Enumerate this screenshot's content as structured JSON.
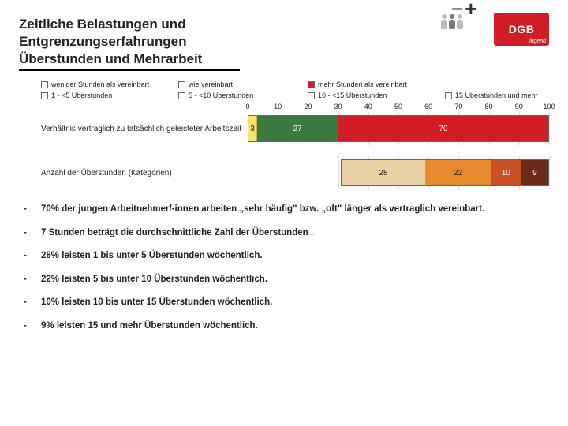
{
  "title": {
    "line1": "Zeitliche Belastungen und",
    "line2": "Entgrenzungserfahrungen",
    "line3": "Überstunden und Mehrarbeit"
  },
  "logo": {
    "text": "DGB",
    "sub": "jugend"
  },
  "legend": [
    {
      "label": "weniger Stunden als vereinbart",
      "color": "#ffffff"
    },
    {
      "label": "wie vereinbart",
      "color": "#ffffff"
    },
    {
      "label": "mehr Stunden als vereinbart",
      "color": "#d11e25"
    },
    {
      "label": "",
      "color": null
    },
    {
      "label": "1 - <5 Überstunden",
      "color": "#ffffff"
    },
    {
      "label": "5 - <10 Überstunden",
      "color": "#ffffff"
    },
    {
      "label": "10 - <15 Überstunden",
      "color": "#ffffff"
    },
    {
      "label": "15 Überstunden und mehr",
      "color": "#ffffff"
    }
  ],
  "chart": {
    "xmin": 0,
    "xmax": 100,
    "tick_step": 10,
    "axis_ticks": [
      0,
      10,
      20,
      30,
      40,
      50,
      60,
      70,
      80,
      90,
      100
    ],
    "background": "#ffffff",
    "grid_color": "#dddddd",
    "border_color": "#666666",
    "label_fontsize": 10,
    "value_fontsize": 10,
    "rows": [
      {
        "label": "Verhältnis vertraglich zu tatsächlich geleisteter Arbeitszeit",
        "segments": [
          {
            "value": 3,
            "display": "3",
            "color": "#f7e36b",
            "text": "dark"
          },
          {
            "value": 27,
            "display": "27",
            "color": "#3a7a3f",
            "text": "light"
          },
          {
            "value": 70,
            "display": "70",
            "color": "#d11e25",
            "text": "light"
          }
        ]
      },
      {
        "label": "Anzahl der Überstunden (Kategorien)",
        "leading_gap": 31,
        "segments": [
          {
            "value": 28,
            "display": "28",
            "color": "#e9cfa2",
            "text": "dark"
          },
          {
            "value": 22,
            "display": "22",
            "color": "#e68a2e",
            "text": "dark"
          },
          {
            "value": 10,
            "display": "10",
            "color": "#c94f24",
            "text": "light"
          },
          {
            "value": 9,
            "display": "9",
            "color": "#6a2a18",
            "text": "light"
          }
        ]
      }
    ]
  },
  "bullets": [
    "70% der jungen Arbeitnehmer/-innen arbeiten „sehr häufig\" bzw. „oft\" länger als vertraglich vereinbart.",
    "7 Stunden beträgt die durchschnittliche Zahl der Überstunden .",
    "28% leisten 1 bis unter 5 Überstunden wöchentlich.",
    "22% leisten 5 bis unter 10 Überstunden wöchentlich.",
    "10% leisten 10 bis unter 15 Überstunden wöchentlich.",
    "9% leisten 15 und mehr Überstunden wöchentlich."
  ]
}
